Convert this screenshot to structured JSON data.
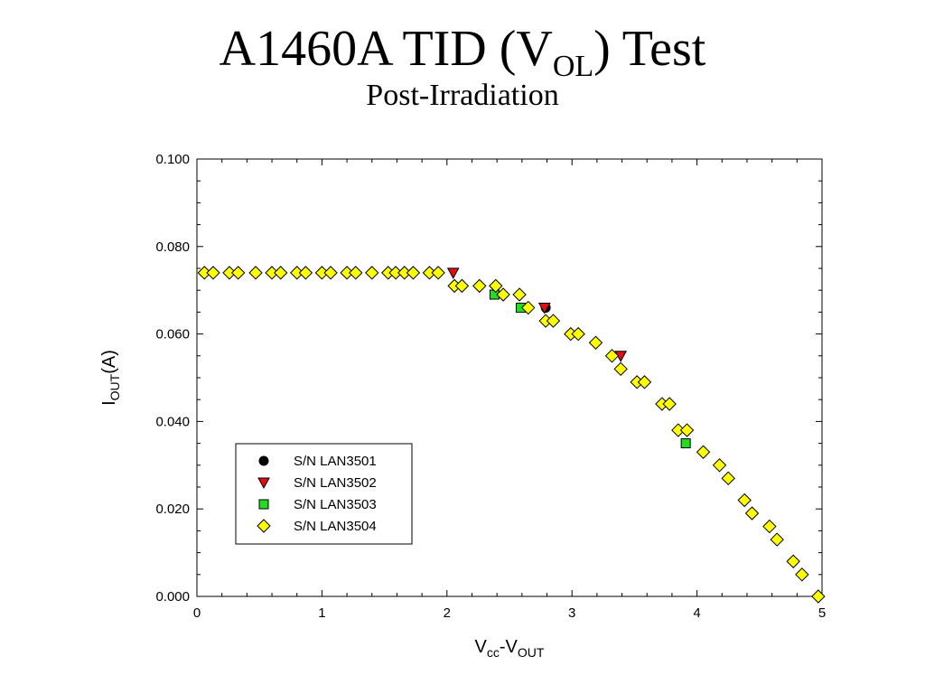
{
  "title": {
    "main": "A1460A TID (V",
    "sub": "OL",
    "end": ") Test"
  },
  "subtitle": "Post-Irradiation",
  "chart_data": {
    "type": "scatter",
    "title": "A1460A TID (VOL) Test",
    "subtitle": "Post-Irradiation",
    "xlabel": {
      "base": "V",
      "sub1": "cc",
      "mid": "-V",
      "sub2": "OUT"
    },
    "ylabel": {
      "base": "I",
      "sub": "OUT",
      "end": "(A)"
    },
    "xlim": [
      0,
      5
    ],
    "ylim": [
      0,
      0.1
    ],
    "x_ticks": [
      0,
      1,
      2,
      3,
      4,
      5
    ],
    "x_tick_labels": [
      "0",
      "1",
      "2",
      "3",
      "4",
      "5"
    ],
    "y_ticks": [
      0,
      0.02,
      0.04,
      0.06,
      0.08,
      0.1
    ],
    "y_tick_labels": [
      "0.000",
      "0.020",
      "0.040",
      "0.060",
      "0.080",
      "0.100"
    ],
    "grid": false,
    "legend_position": "lower-left",
    "series": [
      {
        "name": "S/N LAN3501",
        "marker": "circle",
        "color": "#000000",
        "points": [
          [
            2.79,
            0.066
          ],
          [
            2.59,
            0.066
          ]
        ]
      },
      {
        "name": "S/N LAN3502",
        "marker": "triangle-down",
        "color": "#e01010",
        "points": [
          [
            2.05,
            0.074
          ],
          [
            2.78,
            0.066
          ],
          [
            3.39,
            0.055
          ]
        ]
      },
      {
        "name": "S/N LAN3503",
        "marker": "square",
        "color": "#22dd22",
        "points": [
          [
            2.38,
            0.069
          ],
          [
            2.59,
            0.066
          ],
          [
            3.91,
            0.035
          ]
        ]
      },
      {
        "name": "S/N LAN3504",
        "marker": "diamond",
        "color": "#ffff00",
        "points": [
          [
            0.06,
            0.074
          ],
          [
            0.13,
            0.074
          ],
          [
            0.26,
            0.074
          ],
          [
            0.33,
            0.074
          ],
          [
            0.47,
            0.074
          ],
          [
            0.6,
            0.074
          ],
          [
            0.67,
            0.074
          ],
          [
            0.8,
            0.074
          ],
          [
            0.87,
            0.074
          ],
          [
            1.0,
            0.074
          ],
          [
            1.07,
            0.074
          ],
          [
            1.2,
            0.074
          ],
          [
            1.27,
            0.074
          ],
          [
            1.4,
            0.074
          ],
          [
            1.53,
            0.074
          ],
          [
            1.59,
            0.074
          ],
          [
            1.66,
            0.074
          ],
          [
            1.73,
            0.074
          ],
          [
            1.86,
            0.074
          ],
          [
            1.93,
            0.074
          ],
          [
            2.06,
            0.071
          ],
          [
            2.12,
            0.071
          ],
          [
            2.26,
            0.071
          ],
          [
            2.39,
            0.071
          ],
          [
            2.45,
            0.069
          ],
          [
            2.58,
            0.069
          ],
          [
            2.65,
            0.066
          ],
          [
            2.79,
            0.063
          ],
          [
            2.85,
            0.063
          ],
          [
            2.99,
            0.06
          ],
          [
            3.05,
            0.06
          ],
          [
            3.19,
            0.058
          ],
          [
            3.32,
            0.055
          ],
          [
            3.39,
            0.052
          ],
          [
            3.52,
            0.049
          ],
          [
            3.58,
            0.049
          ],
          [
            3.72,
            0.044
          ],
          [
            3.78,
            0.044
          ],
          [
            3.85,
            0.038
          ],
          [
            3.92,
            0.038
          ],
          [
            4.05,
            0.033
          ],
          [
            4.18,
            0.03
          ],
          [
            4.25,
            0.027
          ],
          [
            4.38,
            0.022
          ],
          [
            4.44,
            0.019
          ],
          [
            4.58,
            0.016
          ],
          [
            4.64,
            0.013
          ],
          [
            4.77,
            0.008
          ],
          [
            4.84,
            0.005
          ],
          [
            4.97,
            0.0
          ]
        ]
      }
    ]
  }
}
